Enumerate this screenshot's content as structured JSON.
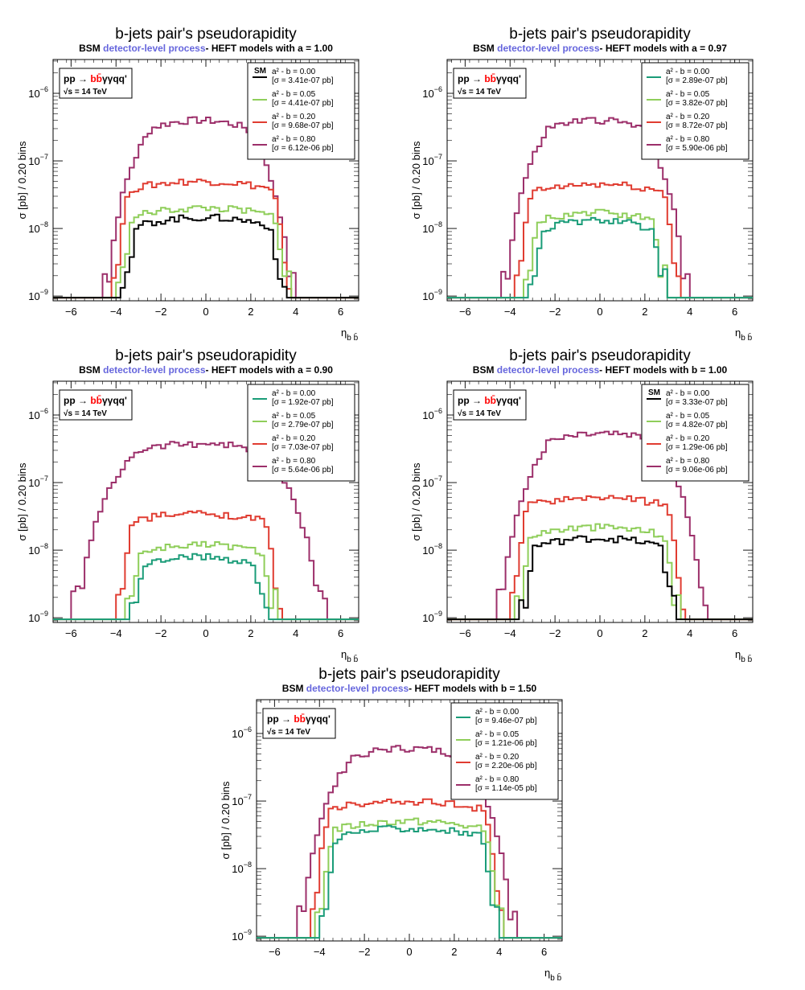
{
  "colors": {
    "sm": "#000000",
    "s1": "#1a9c78",
    "s2": "#8fce5a",
    "s3": "#e03c31",
    "s4": "#9c2f6a",
    "detector": "#6666dd",
    "bb": "#ff0000"
  },
  "common": {
    "ylabel": "σ [pb] / 0.20 bins",
    "xlabel_main": "η",
    "xlabel_sub": "b b̄",
    "process_prefix": "pp → ",
    "process_bb": "bb̄",
    "process_suffix": "γγqq'",
    "energy": "√s = 14 TeV",
    "subtitle_bsm": "BSM ",
    "subtitle_detector": "detector-level process",
    "sm_tag": "SM"
  },
  "chart_data": [
    {
      "type": "line",
      "title": "b-jets pair's pseudorapidity",
      "subtitle_suffix": "- HEFT models with a = 1.00",
      "xlim": [
        -6.8,
        6.8
      ],
      "ylim_log": [
        -9.07,
        -5.5
      ],
      "xticks": [
        -6,
        -4,
        -2,
        0,
        2,
        4,
        6
      ],
      "yticks": [
        {
          "exp": -9,
          "label": "10"
        },
        {
          "exp": -8,
          "label": "10"
        },
        {
          "exp": -7,
          "label": "10"
        },
        {
          "exp": -6,
          "label": "10"
        }
      ],
      "series": [
        {
          "name": "a² - b = 0.00",
          "sigma": "[σ = 3.41e-07 pb]",
          "color": "sm",
          "sm": true,
          "xmin": -3.8,
          "xmax": 3.6,
          "peak": 1.45e-08,
          "flat": 0.8
        },
        {
          "name": "a² - b = 0.05",
          "sigma": "[σ = 4.41e-07 pb]",
          "color": "s2",
          "xmin": -4.0,
          "xmax": 3.8,
          "peak": 2e-08,
          "flat": 0.8
        },
        {
          "name": "a² - b = 0.20",
          "sigma": "[σ = 9.68e-07 pb]",
          "color": "s3",
          "xmin": -4.2,
          "xmax": 3.8,
          "peak": 5e-08,
          "flat": 0.8
        },
        {
          "name": "a² - b = 0.80",
          "sigma": "[σ = 6.12e-06 pb]",
          "color": "s4",
          "xmin": -4.6,
          "xmax": 4.0,
          "peak": 4e-07,
          "flat": 0.5
        }
      ]
    },
    {
      "type": "line",
      "title": "b-jets pair's pseudorapidity",
      "subtitle_suffix": "- HEFT models with a = 0.97",
      "xlim": [
        -6.8,
        6.8
      ],
      "ylim_log": [
        -9.07,
        -5.5
      ],
      "xticks": [
        -6,
        -4,
        -2,
        0,
        2,
        4,
        6
      ],
      "yticks": [
        {
          "exp": -9,
          "label": "10"
        },
        {
          "exp": -8,
          "label": "10"
        },
        {
          "exp": -7,
          "label": "10"
        },
        {
          "exp": -6,
          "label": "10"
        }
      ],
      "series": [
        {
          "name": "a² - b = 0.00",
          "sigma": "[σ = 2.89e-07 pb]",
          "color": "s1",
          "xmin": -3.2,
          "xmax": 3.0,
          "peak": 1.3e-08,
          "flat": 0.8
        },
        {
          "name": "a² - b = 0.05",
          "sigma": "[σ = 3.82e-07 pb]",
          "color": "s2",
          "xmin": -3.4,
          "xmax": 3.0,
          "peak": 1.7e-08,
          "flat": 0.8
        },
        {
          "name": "a² - b = 0.20",
          "sigma": "[σ = 8.72e-07 pb]",
          "color": "s3",
          "xmin": -3.8,
          "xmax": 3.6,
          "peak": 4.5e-08,
          "flat": 0.8
        },
        {
          "name": "a² - b = 0.80",
          "sigma": "[σ = 5.90e-06 pb]",
          "color": "s4",
          "xmin": -4.4,
          "xmax": 4.0,
          "peak": 4e-07,
          "flat": 0.5
        }
      ]
    },
    {
      "type": "line",
      "title": "b-jets pair's pseudorapidity",
      "subtitle_suffix": "- HEFT models with a = 0.90",
      "xlim": [
        -6.8,
        6.8
      ],
      "ylim_log": [
        -9.07,
        -5.5
      ],
      "xticks": [
        -6,
        -4,
        -2,
        0,
        2,
        4,
        6
      ],
      "yticks": [
        {
          "exp": -9,
          "label": "10"
        },
        {
          "exp": -8,
          "label": "10"
        },
        {
          "exp": -7,
          "label": "10"
        },
        {
          "exp": -6,
          "label": "10"
        }
      ],
      "series": [
        {
          "name": "a² - b = 0.00",
          "sigma": "[σ = 1.92e-07 pb]",
          "color": "s1",
          "xmin": -3.4,
          "xmax": 2.8,
          "peak": 8e-09,
          "flat": 0.8
        },
        {
          "name": "a² - b = 0.05",
          "sigma": "[σ = 2.79e-07 pb]",
          "color": "s2",
          "xmin": -3.6,
          "xmax": 3.2,
          "peak": 1.2e-08,
          "flat": 0.8
        },
        {
          "name": "a² - b = 0.20",
          "sigma": "[σ = 7.03e-07 pb]",
          "color": "s3",
          "xmin": -4.0,
          "xmax": 3.4,
          "peak": 3.5e-08,
          "flat": 0.8
        },
        {
          "name": "a² - b = 0.80",
          "sigma": "[σ = 5.64e-06 pb]",
          "color": "s4",
          "xmin": -6.0,
          "xmax": 5.4,
          "peak": 3.8e-07,
          "flat": 0.5
        }
      ]
    },
    {
      "type": "line",
      "title": "b-jets pair's pseudorapidity",
      "subtitle_suffix": "- HEFT models with b = 1.00",
      "xlim": [
        -6.8,
        6.8
      ],
      "ylim_log": [
        -9.07,
        -5.5
      ],
      "xticks": [
        -6,
        -4,
        -2,
        0,
        2,
        4,
        6
      ],
      "yticks": [
        {
          "exp": -9,
          "label": "10"
        },
        {
          "exp": -8,
          "label": "10"
        },
        {
          "exp": -7,
          "label": "10"
        },
        {
          "exp": -6,
          "label": "10"
        }
      ],
      "series": [
        {
          "name": "a² - b = 0.00",
          "sigma": "[σ = 3.33e-07 pb]",
          "color": "sm",
          "sm": true,
          "xmin": -3.6,
          "xmax": 3.4,
          "peak": 1.5e-08,
          "flat": 0.8
        },
        {
          "name": "a² - b = 0.05",
          "sigma": "[σ = 4.82e-07 pb]",
          "color": "s2",
          "xmin": -3.8,
          "xmax": 3.6,
          "peak": 2.2e-08,
          "flat": 0.8
        },
        {
          "name": "a² - b = 0.20",
          "sigma": "[σ = 1.29e-06 pb]",
          "color": "s3",
          "xmin": -4.0,
          "xmax": 3.8,
          "peak": 6e-08,
          "flat": 0.8
        },
        {
          "name": "a² - b = 0.80",
          "sigma": "[σ = 9.06e-06 pb]",
          "color": "s4",
          "xmin": -4.6,
          "xmax": 4.8,
          "peak": 5.5e-07,
          "flat": 0.5
        }
      ]
    },
    {
      "type": "line",
      "title": "b-jets pair's pseudorapidity",
      "subtitle_suffix": "- HEFT models with b = 1.50",
      "xlim": [
        -6.8,
        6.8
      ],
      "ylim_log": [
        -9.07,
        -5.5
      ],
      "xticks": [
        -6,
        -4,
        -2,
        0,
        2,
        4,
        6
      ],
      "yticks": [
        {
          "exp": -9,
          "label": "10"
        },
        {
          "exp": -8,
          "label": "10"
        },
        {
          "exp": -7,
          "label": "10"
        },
        {
          "exp": -6,
          "label": "10"
        }
      ],
      "series": [
        {
          "name": "a² - b = 0.00",
          "sigma": "[σ = 9.46e-07 pb]",
          "color": "s1",
          "xmin": -4.0,
          "xmax": 4.0,
          "peak": 4e-08,
          "flat": 0.8
        },
        {
          "name": "a² - b = 0.05",
          "sigma": "[σ = 1.21e-06 pb]",
          "color": "s2",
          "xmin": -4.2,
          "xmax": 4.2,
          "peak": 5e-08,
          "flat": 0.8
        },
        {
          "name": "a² - b = 0.20",
          "sigma": "[σ = 2.20e-06 pb]",
          "color": "s3",
          "xmin": -4.4,
          "xmax": 4.2,
          "peak": 1e-07,
          "flat": 0.8
        },
        {
          "name": "a² - b = 0.80",
          "sigma": "[σ = 1.14e-05 pb]",
          "color": "s4",
          "xmin": -5.0,
          "xmax": 4.8,
          "peak": 6e-07,
          "flat": 0.5
        }
      ]
    }
  ]
}
